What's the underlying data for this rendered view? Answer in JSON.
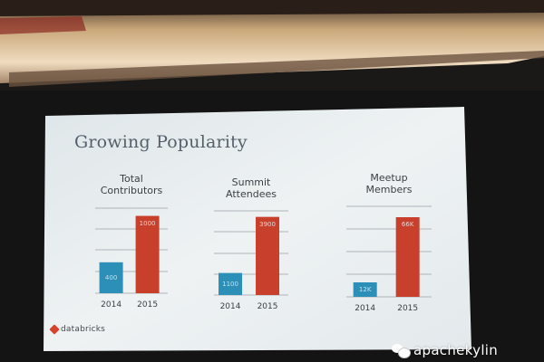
{
  "slide": {
    "title": "Growing Popularity",
    "brand": "databricks"
  },
  "watermark": {
    "text": "apachekylin",
    "icon": "wechat-icon"
  },
  "colors": {
    "bar_2014": "#2b8fb7",
    "bar_2015": "#c8402c",
    "slide_background": "#e9eef0",
    "title_text": "#55606a",
    "brand_accent": "#d6432c"
  },
  "chart_data": [
    {
      "type": "bar",
      "title": [
        "Total",
        "Contributors"
      ],
      "categories": [
        "2014",
        "2015"
      ],
      "values": [
        400,
        1000
      ],
      "value_labels": [
        "400",
        "1000"
      ],
      "ylim": [
        0,
        1100
      ],
      "grid": true
    },
    {
      "type": "bar",
      "title": [
        "Summit",
        "Attendees"
      ],
      "categories": [
        "2014",
        "2015"
      ],
      "values": [
        1100,
        3900
      ],
      "value_labels": [
        "1100",
        "3900"
      ],
      "ylim": [
        0,
        4200
      ],
      "grid": true
    },
    {
      "type": "bar",
      "title": [
        "Meetup",
        "Members"
      ],
      "categories": [
        "2014",
        "2015"
      ],
      "values": [
        12,
        66
      ],
      "value_labels": [
        "12K",
        "66K"
      ],
      "ylim": [
        0,
        75
      ],
      "grid": true
    }
  ]
}
